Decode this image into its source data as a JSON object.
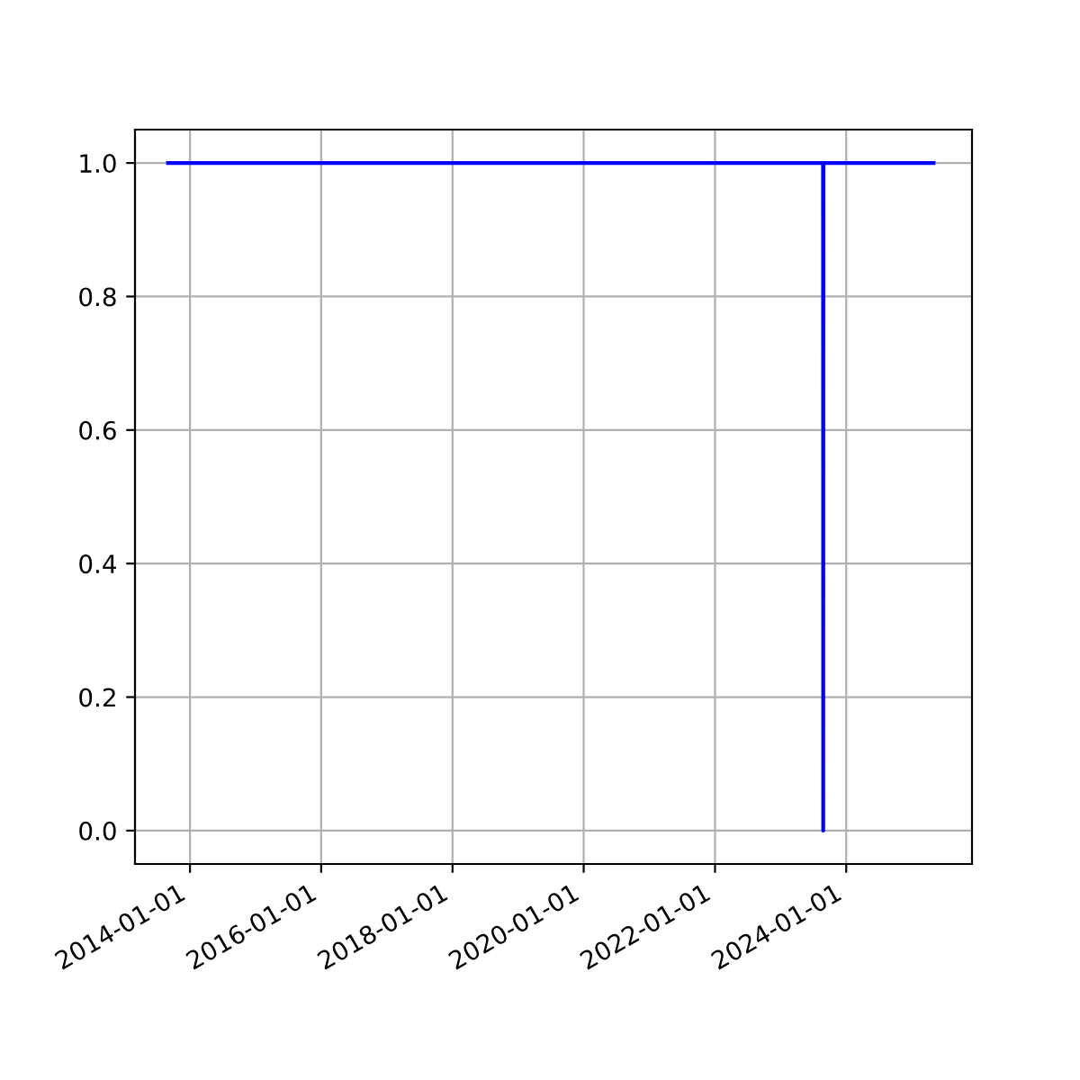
{
  "chart_data": {
    "type": "line",
    "x": [
      "2013-09-01",
      "2023-08-25",
      "2023-08-26",
      "2023-08-27",
      "2025-05-01"
    ],
    "series": [
      {
        "color": "#0000ff",
        "values": [
          1,
          1,
          0,
          1,
          1
        ]
      }
    ],
    "xlim": [
      "2013-03-01",
      "2025-12-01"
    ],
    "xticks": [
      "2014-01-01",
      "2016-01-01",
      "2018-01-01",
      "2020-01-01",
      "2022-01-01",
      "2024-01-01"
    ],
    "ylim": [
      -0.05,
      1.05
    ],
    "yticks": [
      {
        "value": 0,
        "label": "0.0"
      },
      {
        "value": 0.2,
        "label": "0.2"
      },
      {
        "value": 0.4,
        "label": "0.4"
      },
      {
        "value": 0.6,
        "label": "0.6"
      },
      {
        "value": 0.8,
        "label": "0.8"
      },
      {
        "value": 1,
        "label": "1.0"
      }
    ],
    "grid": true
  }
}
